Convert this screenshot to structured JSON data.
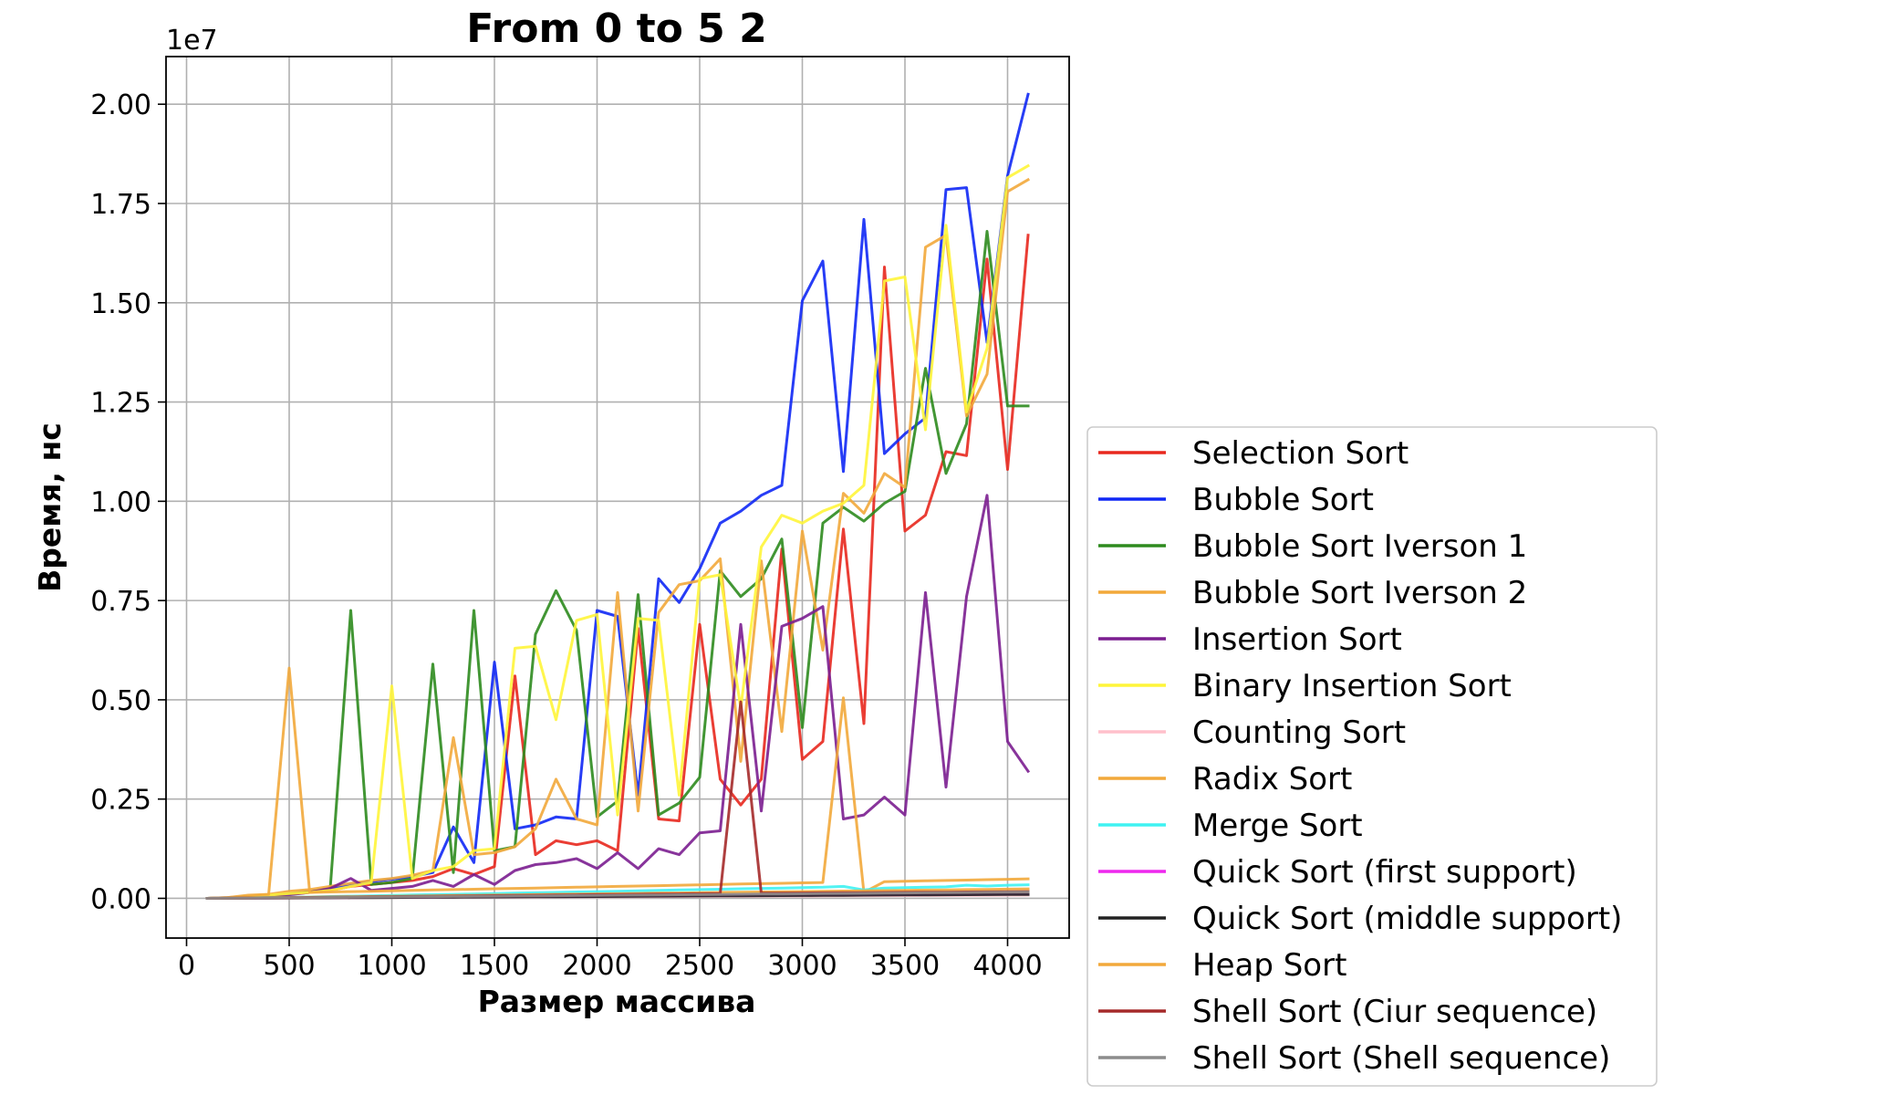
{
  "chart_data": {
    "type": "line",
    "title": "From 0 to 5 2",
    "xlabel": "Размер массива",
    "ylabel": "Время, нс",
    "y_offset_label": "1e7",
    "xlim": [
      -100,
      4300
    ],
    "ylim": [
      -1000000,
      21200000
    ],
    "x_ticks": [
      0,
      500,
      1000,
      1500,
      2000,
      2500,
      3000,
      3500,
      4000
    ],
    "x_tick_labels": [
      "0",
      "500",
      "1000",
      "1500",
      "2000",
      "2500",
      "3000",
      "3500",
      "4000"
    ],
    "y_ticks": [
      0,
      2500000,
      5000000,
      7500000,
      10000000,
      12500000,
      15000000,
      17500000,
      20000000
    ],
    "y_tick_labels": [
      "0.00",
      "0.25",
      "0.50",
      "0.75",
      "1.00",
      "1.25",
      "1.50",
      "1.75",
      "2.00"
    ],
    "grid": true,
    "legend_position": "lower-right outside",
    "x": [
      100,
      200,
      300,
      400,
      500,
      600,
      700,
      800,
      900,
      1000,
      1100,
      1200,
      1300,
      1400,
      1500,
      1600,
      1700,
      1800,
      1900,
      2000,
      2100,
      2200,
      2300,
      2400,
      2500,
      2600,
      2700,
      2800,
      2900,
      3000,
      3100,
      3200,
      3300,
      3400,
      3500,
      3600,
      3700,
      3800,
      3900,
      4000,
      4100
    ],
    "series": [
      {
        "name": "Selection Sort",
        "color": "#e8281e",
        "values": [
          0,
          10000,
          30000,
          60000,
          100000,
          150000,
          200000,
          300000,
          350000,
          400000,
          450000,
          550000,
          750000,
          600000,
          800000,
          5600000,
          1100000,
          1450000,
          1350000,
          1450000,
          1200000,
          6800000,
          2000000,
          1950000,
          6900000,
          3000000,
          2350000,
          3000000,
          8800000,
          3500000,
          3950000,
          9300000,
          4400000,
          15900000,
          9250000,
          9650000,
          11250000,
          11150000,
          16100000,
          10800000,
          16700000
        ]
      },
      {
        "name": "Bubble Sort",
        "color": "#1028f5",
        "values": [
          0,
          10000,
          40000,
          80000,
          120000,
          180000,
          250000,
          350000,
          420000,
          480000,
          550000,
          650000,
          1800000,
          900000,
          5950000,
          1750000,
          1850000,
          2050000,
          2000000,
          7250000,
          7100000,
          2600000,
          8050000,
          7450000,
          8300000,
          9450000,
          9750000,
          10150000,
          10400000,
          15050000,
          16050000,
          10750000,
          17100000,
          11200000,
          11700000,
          12100000,
          17850000,
          17900000,
          14000000,
          18200000,
          20250000
        ]
      },
      {
        "name": "Bubble Sort Iverson 1",
        "color": "#2e8b1e",
        "values": [
          0,
          10000,
          30000,
          70000,
          110000,
          160000,
          250000,
          7250000,
          350000,
          400000,
          500000,
          5900000,
          650000,
          7250000,
          1200000,
          1300000,
          6650000,
          7750000,
          6750000,
          2050000,
          2450000,
          7650000,
          2100000,
          2400000,
          3050000,
          8250000,
          7600000,
          8050000,
          9050000,
          4300000,
          9450000,
          9850000,
          9500000,
          9950000,
          10250000,
          13350000,
          10700000,
          11950000,
          16800000,
          12400000,
          12400000
        ]
      },
      {
        "name": "Bubble Sort Iverson 2",
        "color": "#f2a93b",
        "values": [
          0,
          20000,
          50000,
          100000,
          180000,
          220000,
          300000,
          380000,
          450000,
          500000,
          580000,
          700000,
          4050000,
          1100000,
          1150000,
          1300000,
          1750000,
          3000000,
          2000000,
          1850000,
          7700000,
          2200000,
          7200000,
          7900000,
          8000000,
          8550000,
          3450000,
          8500000,
          4200000,
          9250000,
          6250000,
          10200000,
          9700000,
          10700000,
          10350000,
          16400000,
          16700000,
          12150000,
          13200000,
          17800000,
          18100000
        ]
      },
      {
        "name": "Insertion Sort",
        "color": "#7b1e90",
        "values": [
          0,
          5000,
          20000,
          50000,
          90000,
          150000,
          250000,
          500000,
          200000,
          250000,
          300000,
          450000,
          300000,
          600000,
          350000,
          700000,
          850000,
          900000,
          1000000,
          750000,
          1150000,
          750000,
          1250000,
          1100000,
          1650000,
          1700000,
          6900000,
          2200000,
          6850000,
          7050000,
          7350000,
          2000000,
          2100000,
          2550000,
          2100000,
          7700000,
          2800000,
          7600000,
          10150000,
          3950000,
          3200000
        ]
      },
      {
        "name": "Binary Insertion Sort",
        "color": "#fff53a",
        "values": [
          0,
          10000,
          40000,
          80000,
          120000,
          150000,
          200000,
          300000,
          400000,
          5350000,
          500000,
          700000,
          800000,
          1200000,
          1250000,
          6300000,
          6350000,
          4500000,
          7000000,
          7150000,
          2100000,
          7050000,
          7000000,
          2600000,
          8050000,
          8150000,
          4800000,
          8850000,
          9650000,
          9450000,
          9750000,
          9950000,
          10400000,
          15550000,
          15650000,
          11800000,
          16950000,
          12250000,
          13850000,
          18150000,
          18450000
        ]
      },
      {
        "name": "Counting Sort",
        "color": "#ffc0cb",
        "values": [
          0,
          2000,
          4000,
          6000,
          8000,
          10000,
          12000,
          14000,
          16000,
          18000,
          20000,
          22000,
          24000,
          26000,
          28000,
          30000,
          32000,
          34000,
          36000,
          38000,
          40000,
          42000,
          44000,
          46000,
          48000,
          50000,
          52000,
          54000,
          56000,
          58000,
          60000,
          62000,
          64000,
          66000,
          68000,
          70000,
          72000,
          74000,
          76000,
          78000,
          80000
        ]
      },
      {
        "name": "Radix Sort",
        "color": "#f2a93b",
        "values": [
          0,
          20000,
          80000,
          100000,
          5800000,
          150000,
          160000,
          170000,
          180000,
          190000,
          200000,
          210000,
          220000,
          230000,
          240000,
          250000,
          260000,
          270000,
          280000,
          290000,
          300000,
          310000,
          320000,
          330000,
          340000,
          350000,
          360000,
          370000,
          380000,
          390000,
          400000,
          5050000,
          150000,
          420000,
          430000,
          440000,
          450000,
          460000,
          470000,
          480000,
          490000
        ]
      },
      {
        "name": "Merge Sort",
        "color": "#3ff2f2",
        "values": [
          0,
          5000,
          10000,
          20000,
          25000,
          35000,
          45000,
          55000,
          65000,
          75000,
          85000,
          95000,
          100000,
          110000,
          120000,
          130000,
          140000,
          150000,
          160000,
          170000,
          180000,
          190000,
          200000,
          210000,
          220000,
          230000,
          240000,
          250000,
          260000,
          270000,
          280000,
          300000,
          210000,
          260000,
          270000,
          280000,
          290000,
          330000,
          310000,
          330000,
          340000
        ]
      },
      {
        "name": "Quick Sort (first support)",
        "color": "#ee28ee",
        "values": [
          0,
          2000,
          5000,
          8000,
          11000,
          14000,
          17000,
          20000,
          23000,
          26000,
          29000,
          32000,
          35000,
          38000,
          41000,
          44000,
          47000,
          50000,
          53000,
          56000,
          59000,
          62000,
          65000,
          68000,
          71000,
          74000,
          77000,
          80000,
          83000,
          86000,
          89000,
          92000,
          95000,
          98000,
          101000,
          104000,
          107000,
          110000,
          113000,
          116000,
          119000
        ]
      },
      {
        "name": "Quick Sort (middle support)",
        "color": "#222222",
        "values": [
          0,
          1500,
          4000,
          6500,
          9000,
          11500,
          14000,
          16500,
          19000,
          21500,
          24000,
          26500,
          29000,
          31500,
          34000,
          36500,
          39000,
          41500,
          44000,
          46500,
          49000,
          51500,
          54000,
          56500,
          59000,
          61500,
          64000,
          66500,
          69000,
          71500,
          74000,
          76500,
          79000,
          81500,
          84000,
          86500,
          89000,
          91500,
          94000,
          96500,
          99000
        ]
      },
      {
        "name": "Heap Sort",
        "color": "#f2a93b",
        "values": [
          0,
          4000,
          10000,
          16000,
          22000,
          28000,
          34000,
          40000,
          46000,
          52000,
          58000,
          64000,
          70000,
          76000,
          82000,
          88000,
          94000,
          100000,
          106000,
          112000,
          118000,
          124000,
          130000,
          136000,
          142000,
          148000,
          154000,
          160000,
          166000,
          172000,
          178000,
          184000,
          190000,
          196000,
          202000,
          208000,
          214000,
          220000,
          226000,
          232000,
          238000
        ]
      },
      {
        "name": "Shell Sort (Ciur sequence)",
        "color": "#a52a2a",
        "values": [
          0,
          3000,
          8000,
          13000,
          18000,
          23000,
          28000,
          33000,
          38000,
          43000,
          48000,
          53000,
          58000,
          63000,
          68000,
          73000,
          78000,
          83000,
          88000,
          93000,
          98000,
          103000,
          108000,
          113000,
          118000,
          123000,
          4950000,
          130000,
          133000,
          136000,
          139000,
          142000,
          145000,
          148000,
          151000,
          154000,
          157000,
          160000,
          163000,
          166000,
          169000
        ]
      },
      {
        "name": "Shell Sort (Shell sequence)",
        "color": "#8c8c8c",
        "values": [
          0,
          3000,
          7000,
          11000,
          15000,
          19000,
          23000,
          27000,
          31000,
          35000,
          39000,
          43000,
          47000,
          51000,
          55000,
          59000,
          63000,
          67000,
          71000,
          75000,
          79000,
          83000,
          87000,
          91000,
          95000,
          99000,
          103000,
          107000,
          111000,
          115000,
          119000,
          123000,
          127000,
          131000,
          135000,
          139000,
          143000,
          147000,
          151000,
          155000,
          159000
        ]
      }
    ]
  }
}
